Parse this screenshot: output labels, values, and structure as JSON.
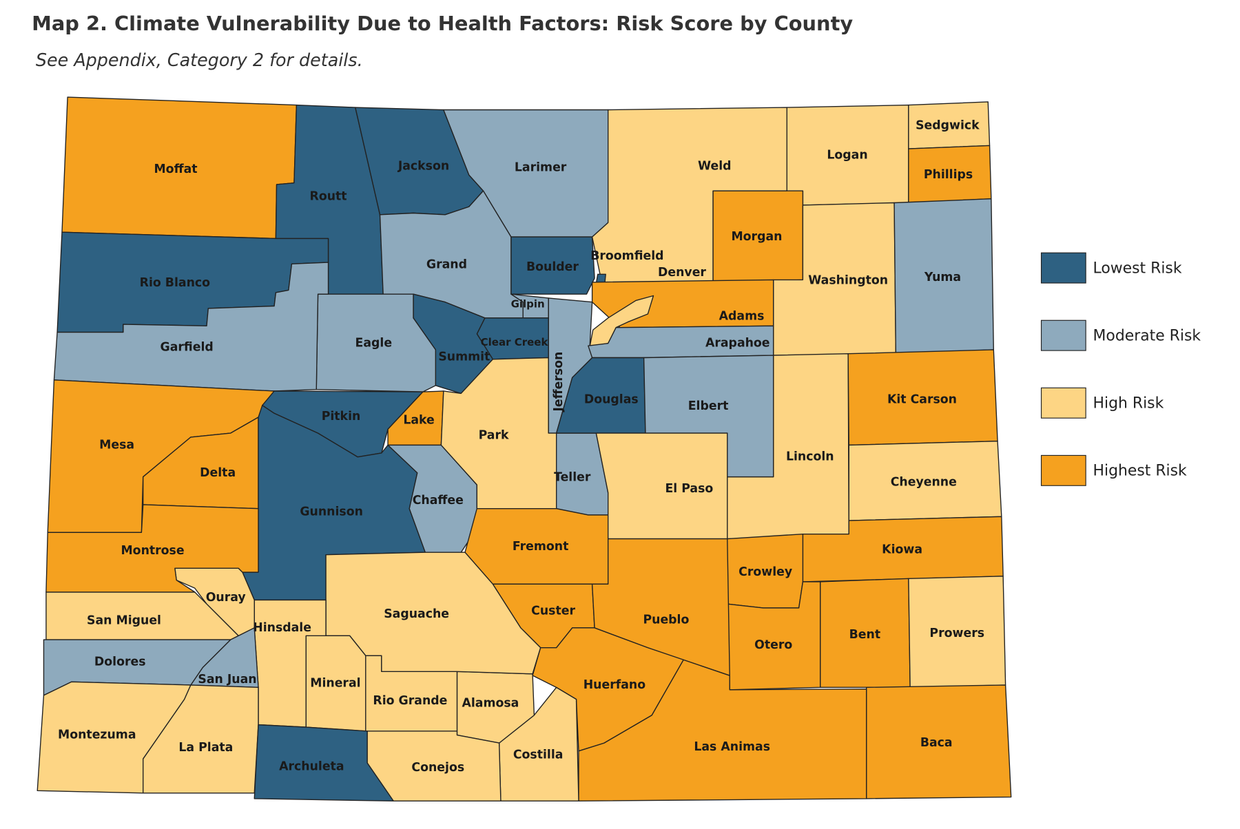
{
  "header": {
    "title": "Map 2. Climate Vulnerability Due to Health Factors: Risk Score by County",
    "subtitle": "See Appendix, Category 2 for details."
  },
  "legend": [
    {
      "label": "Lowest Risk",
      "color": "#2e6182"
    },
    {
      "label": "Moderate Risk",
      "color": "#8eaabd"
    },
    {
      "label": "High Risk",
      "color": "#fdd584"
    },
    {
      "label": "Highest Risk",
      "color": "#f5a11f"
    }
  ],
  "counties": [
    {
      "name": "Moffat",
      "risk": "Highest Risk"
    },
    {
      "name": "Routt",
      "risk": "Lowest Risk"
    },
    {
      "name": "Jackson",
      "risk": "Lowest Risk"
    },
    {
      "name": "Larimer",
      "risk": "Moderate Risk"
    },
    {
      "name": "Weld",
      "risk": "High Risk"
    },
    {
      "name": "Logan",
      "risk": "High Risk"
    },
    {
      "name": "Sedgwick",
      "risk": "High Risk"
    },
    {
      "name": "Phillips",
      "risk": "Highest Risk"
    },
    {
      "name": "Morgan",
      "risk": "Highest Risk"
    },
    {
      "name": "Washington",
      "risk": "High Risk"
    },
    {
      "name": "Yuma",
      "risk": "Moderate Risk"
    },
    {
      "name": "Rio Blanco",
      "risk": "Lowest Risk"
    },
    {
      "name": "Grand",
      "risk": "Moderate Risk"
    },
    {
      "name": "Boulder",
      "risk": "Lowest Risk"
    },
    {
      "name": "Broomfield",
      "risk": "Lowest Risk"
    },
    {
      "name": "Adams",
      "risk": "Highest Risk"
    },
    {
      "name": "Denver",
      "risk": "High Risk"
    },
    {
      "name": "Arapahoe",
      "risk": "Moderate Risk"
    },
    {
      "name": "Jefferson",
      "risk": "Moderate Risk"
    },
    {
      "name": "Gilpin",
      "risk": "Moderate Risk"
    },
    {
      "name": "Clear Creek",
      "risk": "Lowest Risk"
    },
    {
      "name": "Summit",
      "risk": "Lowest Risk"
    },
    {
      "name": "Eagle",
      "risk": "Moderate Risk"
    },
    {
      "name": "Garfield",
      "risk": "Moderate Risk"
    },
    {
      "name": "Mesa",
      "risk": "Highest Risk"
    },
    {
      "name": "Delta",
      "risk": "Highest Risk"
    },
    {
      "name": "Pitkin",
      "risk": "Lowest Risk"
    },
    {
      "name": "Lake",
      "risk": "Highest Risk"
    },
    {
      "name": "Gunnison",
      "risk": "Lowest Risk"
    },
    {
      "name": "Chaffee",
      "risk": "Moderate Risk"
    },
    {
      "name": "Park",
      "risk": "High Risk"
    },
    {
      "name": "Douglas",
      "risk": "Lowest Risk"
    },
    {
      "name": "Elbert",
      "risk": "Moderate Risk"
    },
    {
      "name": "Teller",
      "risk": "Moderate Risk"
    },
    {
      "name": "El Paso",
      "risk": "High Risk"
    },
    {
      "name": "Lincoln",
      "risk": "High Risk"
    },
    {
      "name": "Kit Carson",
      "risk": "Highest Risk"
    },
    {
      "name": "Cheyenne",
      "risk": "High Risk"
    },
    {
      "name": "Kiowa",
      "risk": "Highest Risk"
    },
    {
      "name": "Crowley",
      "risk": "Highest Risk"
    },
    {
      "name": "Fremont",
      "risk": "Highest Risk"
    },
    {
      "name": "Custer",
      "risk": "Highest Risk"
    },
    {
      "name": "Pueblo",
      "risk": "Highest Risk"
    },
    {
      "name": "Otero",
      "risk": "Highest Risk"
    },
    {
      "name": "Bent",
      "risk": "Highest Risk"
    },
    {
      "name": "Prowers",
      "risk": "High Risk"
    },
    {
      "name": "Baca",
      "risk": "Highest Risk"
    },
    {
      "name": "Las Animas",
      "risk": "Highest Risk"
    },
    {
      "name": "Huerfano",
      "risk": "Highest Risk"
    },
    {
      "name": "Costilla",
      "risk": "High Risk"
    },
    {
      "name": "Alamosa",
      "risk": "High Risk"
    },
    {
      "name": "Conejos",
      "risk": "High Risk"
    },
    {
      "name": "Rio Grande",
      "risk": "High Risk"
    },
    {
      "name": "Saguache",
      "risk": "High Risk"
    },
    {
      "name": "Mineral",
      "risk": "High Risk"
    },
    {
      "name": "Hinsdale",
      "risk": "High Risk"
    },
    {
      "name": "Ouray",
      "risk": "High Risk"
    },
    {
      "name": "San Miguel",
      "risk": "High Risk"
    },
    {
      "name": "San Juan",
      "risk": "Moderate Risk"
    },
    {
      "name": "Dolores",
      "risk": "Moderate Risk"
    },
    {
      "name": "Montezuma",
      "risk": "High Risk"
    },
    {
      "name": "La Plata",
      "risk": "High Risk"
    },
    {
      "name": "Archuleta",
      "risk": "Lowest Risk"
    },
    {
      "name": "Montrose",
      "risk": "Highest Risk"
    }
  ]
}
